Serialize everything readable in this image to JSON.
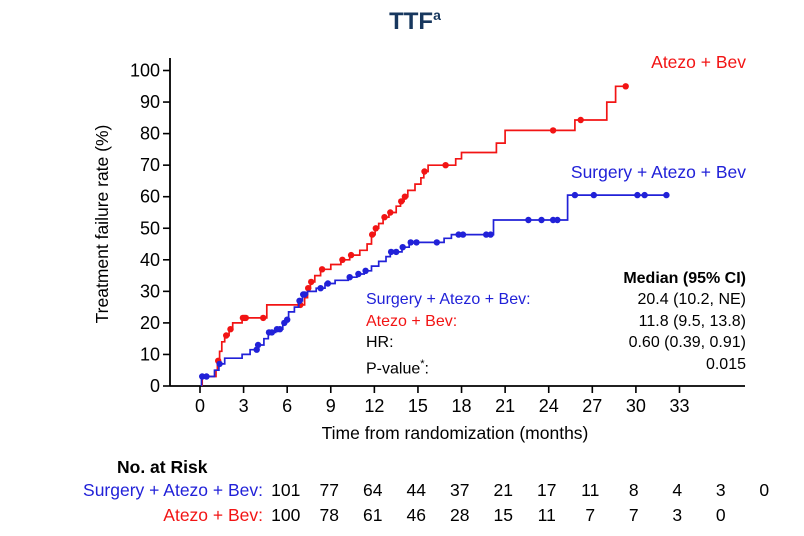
{
  "title": {
    "text": "TTF",
    "superscript": "a",
    "color": "#17375e"
  },
  "colors": {
    "atezo_bev": "#f21414",
    "surgery_atezo_bev": "#2121d8",
    "axis": "#000000"
  },
  "chart_data": {
    "type": "line",
    "subtype": "kaplan-meier-step",
    "title": "TTF",
    "xlabel": "Time from randomization (months)",
    "ylabel": "Treatment failure rate (%)",
    "xlim": [
      0,
      33
    ],
    "ylim": [
      0,
      100
    ],
    "x_ticks": [
      0,
      3,
      6,
      9,
      12,
      15,
      18,
      21,
      24,
      27,
      30,
      33
    ],
    "y_ticks": [
      0,
      10,
      20,
      30,
      40,
      50,
      60,
      70,
      80,
      90,
      100
    ],
    "grid": false,
    "legend_position": "labels-inline-right",
    "series": [
      {
        "name": "Atezo + Bev",
        "color": "#f21414",
        "end_time": 29.4,
        "steps": [
          [
            0.15,
            3
          ],
          [
            1.1,
            5
          ],
          [
            1.2,
            8
          ],
          [
            1.35,
            11
          ],
          [
            1.5,
            14
          ],
          [
            1.7,
            16
          ],
          [
            2.0,
            18
          ],
          [
            2.25,
            20
          ],
          [
            2.9,
            21.6
          ],
          [
            4.6,
            25.7
          ],
          [
            7.2,
            28
          ],
          [
            7.4,
            31
          ],
          [
            7.6,
            33
          ],
          [
            7.9,
            35
          ],
          [
            8.3,
            37
          ],
          [
            9.0,
            38.5
          ],
          [
            9.7,
            40
          ],
          [
            10.3,
            41.5
          ],
          [
            11.0,
            43
          ],
          [
            11.5,
            45
          ],
          [
            11.8,
            48
          ],
          [
            12.05,
            50
          ],
          [
            12.3,
            51.5
          ],
          [
            12.6,
            53.5
          ],
          [
            13.0,
            55
          ],
          [
            13.5,
            57
          ],
          [
            13.8,
            58.5
          ],
          [
            14.05,
            60
          ],
          [
            14.3,
            62
          ],
          [
            14.8,
            64
          ],
          [
            15.2,
            66
          ],
          [
            15.4,
            68
          ],
          [
            15.7,
            70
          ],
          [
            17.6,
            72
          ],
          [
            18.0,
            74
          ],
          [
            20.4,
            77
          ],
          [
            21.0,
            81
          ],
          [
            25.8,
            84.3
          ],
          [
            28.0,
            90
          ],
          [
            28.6,
            95
          ]
        ],
        "censor_marks": [
          [
            1.25,
            8
          ],
          [
            1.8,
            16
          ],
          [
            2.1,
            18
          ],
          [
            2.95,
            21.6
          ],
          [
            3.05,
            21.6
          ],
          [
            3.15,
            21.6
          ],
          [
            4.35,
            21.6
          ],
          [
            6.9,
            25.7
          ],
          [
            7.45,
            31
          ],
          [
            7.65,
            33
          ],
          [
            8.4,
            37
          ],
          [
            9.8,
            40
          ],
          [
            10.4,
            41.5
          ],
          [
            11.85,
            48
          ],
          [
            12.1,
            50
          ],
          [
            12.7,
            53.5
          ],
          [
            13.1,
            55
          ],
          [
            13.85,
            58.5
          ],
          [
            14.1,
            60
          ],
          [
            15.45,
            68
          ],
          [
            16.9,
            70
          ],
          [
            24.3,
            81
          ],
          [
            26.2,
            84.3
          ],
          [
            29.3,
            95
          ]
        ]
      },
      {
        "name": "Surgery + Atezo + Bev",
        "color": "#2121d8",
        "end_time": 32.2,
        "steps": [
          [
            0.1,
            3
          ],
          [
            1.0,
            5
          ],
          [
            1.3,
            7
          ],
          [
            1.7,
            8.8
          ],
          [
            2.9,
            10
          ],
          [
            3.45,
            11.5
          ],
          [
            3.95,
            13
          ],
          [
            4.4,
            15
          ],
          [
            4.7,
            17
          ],
          [
            5.2,
            18
          ],
          [
            5.7,
            20
          ],
          [
            5.95,
            21
          ],
          [
            6.1,
            23.5
          ],
          [
            6.5,
            25
          ],
          [
            6.8,
            27
          ],
          [
            7.05,
            29
          ],
          [
            7.4,
            30
          ],
          [
            8.0,
            31
          ],
          [
            8.6,
            32.5
          ],
          [
            9.3,
            33.5
          ],
          [
            10.2,
            34.5
          ],
          [
            10.8,
            35.5
          ],
          [
            11.3,
            36.5
          ],
          [
            11.8,
            38
          ],
          [
            12.3,
            39.5
          ],
          [
            12.8,
            41
          ],
          [
            13.1,
            42.5
          ],
          [
            13.9,
            44
          ],
          [
            14.4,
            45.5
          ],
          [
            16.8,
            46.8
          ],
          [
            17.3,
            48
          ],
          [
            20.2,
            52.6
          ],
          [
            25.3,
            60.5
          ]
        ],
        "censor_marks": [
          [
            0.15,
            3
          ],
          [
            0.45,
            3
          ],
          [
            1.35,
            7
          ],
          [
            3.9,
            11.5
          ],
          [
            4.0,
            13
          ],
          [
            4.75,
            17
          ],
          [
            4.95,
            17
          ],
          [
            5.3,
            18
          ],
          [
            5.5,
            18
          ],
          [
            5.8,
            20
          ],
          [
            6.0,
            21
          ],
          [
            6.85,
            27
          ],
          [
            7.1,
            29
          ],
          [
            7.2,
            29
          ],
          [
            8.3,
            31
          ],
          [
            8.8,
            32.5
          ],
          [
            10.3,
            34.5
          ],
          [
            10.9,
            35.5
          ],
          [
            11.4,
            36.5
          ],
          [
            13.15,
            42.5
          ],
          [
            13.5,
            42.5
          ],
          [
            13.95,
            44
          ],
          [
            14.5,
            45.5
          ],
          [
            14.9,
            45.5
          ],
          [
            16.3,
            45.5
          ],
          [
            17.8,
            48
          ],
          [
            18.1,
            48
          ],
          [
            19.7,
            48
          ],
          [
            20.0,
            48
          ],
          [
            22.6,
            52.6
          ],
          [
            23.5,
            52.6
          ],
          [
            24.3,
            52.6
          ],
          [
            24.6,
            52.6
          ],
          [
            25.8,
            60.5
          ],
          [
            27.1,
            60.5
          ],
          [
            30.1,
            60.5
          ],
          [
            30.6,
            60.5
          ],
          [
            32.1,
            60.5
          ]
        ]
      }
    ]
  },
  "curve_labels": {
    "atezo_bev": "Atezo + Bev",
    "surgery_atezo_bev": "Surgery + Atezo + Bev"
  },
  "stats": {
    "header": "Median (95% CI)",
    "rows": [
      {
        "label": "Surgery + Atezo + Bev:",
        "value": "20.4 (10.2, NE)",
        "color": "#2121d8"
      },
      {
        "label": "Atezo + Bev:",
        "value": "11.8 (9.5, 13.8)",
        "color": "#f21414"
      },
      {
        "label": "HR:",
        "value": "0.60 (0.39, 0.91)",
        "color": "#000000"
      },
      {
        "label": "P-value*:",
        "value": "0.015",
        "color": "#000000"
      }
    ]
  },
  "risk_table": {
    "title": "No. at Risk",
    "rows": [
      {
        "label": "Surgery + Atezo + Bev:",
        "color": "#2121d8",
        "values": [
          101,
          77,
          64,
          44,
          37,
          21,
          17,
          11,
          8,
          4,
          3,
          0
        ]
      },
      {
        "label": "Atezo + Bev:",
        "color": "#f21414",
        "values": [
          100,
          78,
          61,
          46,
          28,
          15,
          11,
          7,
          7,
          3,
          0
        ]
      }
    ]
  }
}
